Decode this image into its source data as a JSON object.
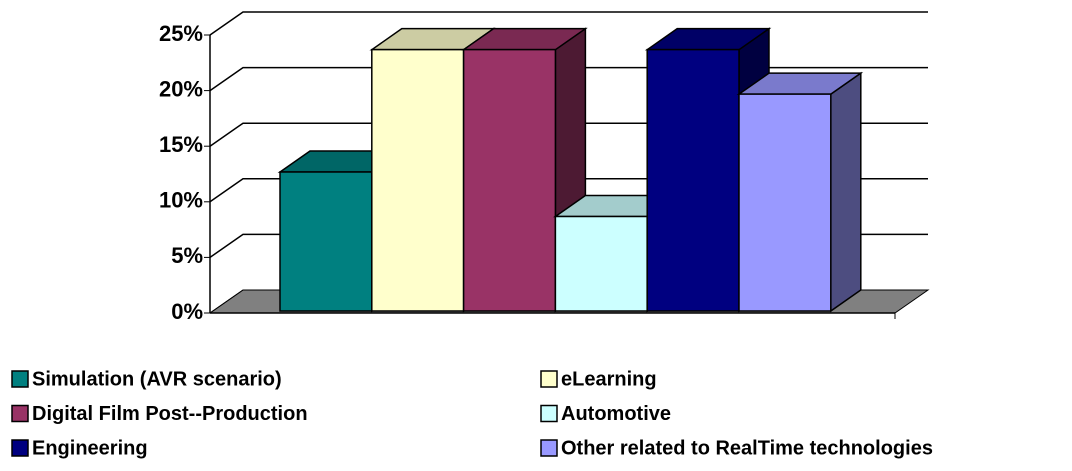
{
  "chart_data": {
    "type": "bar3d",
    "categories": [
      null
    ],
    "series": [
      {
        "name": "Simulation (AVR scenario)",
        "color": "#008080",
        "values": [
          12.5
        ]
      },
      {
        "name": "eLearning",
        "color": "#ffffcc",
        "values": [
          23.5
        ]
      },
      {
        "name": "Digital Film Post--Production",
        "color": "#993366",
        "values": [
          23.5
        ]
      },
      {
        "name": "Automotive",
        "color": "#ccffff",
        "values": [
          8.5
        ]
      },
      {
        "name": "Engineering",
        "color": "#000080",
        "values": [
          23.5
        ]
      },
      {
        "name": "Other related to RealTime technologies",
        "color": "#9999ff",
        "values": [
          19.5
        ]
      }
    ],
    "ylim": [
      0,
      25
    ],
    "yticks": [
      {
        "value": 0,
        "label": "0%"
      },
      {
        "value": 5,
        "label": "5%"
      },
      {
        "value": 10,
        "label": "10%"
      },
      {
        "value": 15,
        "label": "15%"
      },
      {
        "value": 20,
        "label": "20%"
      },
      {
        "value": 25,
        "label": "25%"
      }
    ],
    "grid": true,
    "legend": "bottom"
  }
}
